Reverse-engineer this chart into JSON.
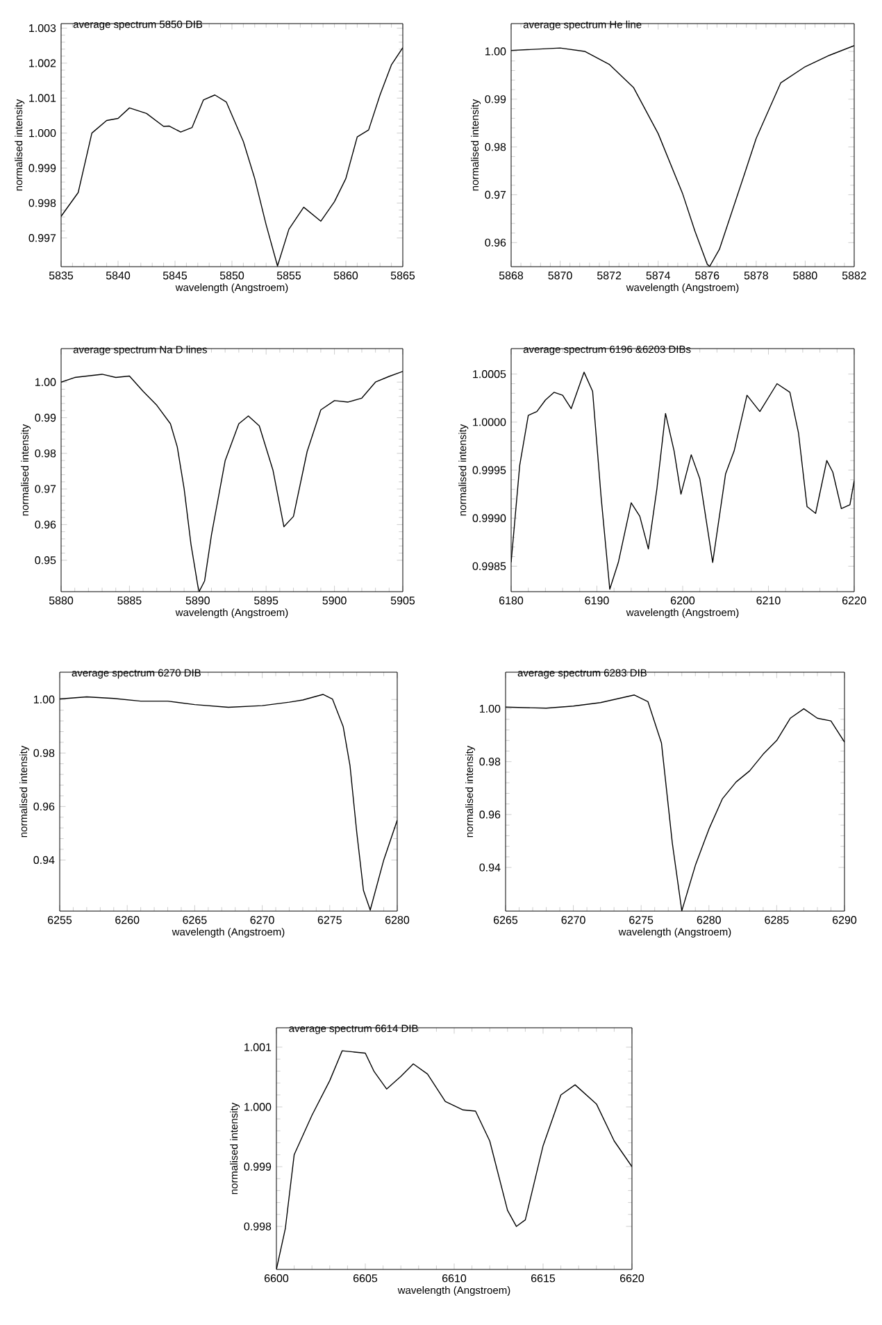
{
  "chart_data": [
    {
      "type": "line",
      "title": "average spectrum 5850 DIB",
      "xlabel": "wavelength (Angstroem)",
      "ylabel": "normalised intensity",
      "color": "#000000",
      "xlim": [
        5835,
        5865
      ],
      "ylim": [
        0.99618,
        1.00313
      ],
      "xticks": [
        5835,
        5840,
        5845,
        5850,
        5855,
        5860,
        5865
      ],
      "yticks": [
        {
          "value": 0.997,
          "label": "0.997"
        },
        {
          "value": 0.998,
          "label": "0.998"
        },
        {
          "value": 0.999,
          "label": "0.999"
        },
        {
          "value": 1.0,
          "label": "1.000"
        },
        {
          "value": 1.001,
          "label": "1.001"
        },
        {
          "value": 1.002,
          "label": "1.002"
        },
        {
          "value": 1.003,
          "label": "1.003"
        }
      ],
      "x": [
        5835,
        5836.5,
        5837.7,
        5839,
        5840,
        5841,
        5842.5,
        5844,
        5844.5,
        5845.5,
        5846.5,
        5847.5,
        5848.5,
        5849.5,
        5851,
        5852,
        5853,
        5854,
        5855,
        5856.3,
        5857.8,
        5859,
        5860,
        5861,
        5862,
        5863,
        5864,
        5865
      ],
      "values": [
        0.99762,
        0.9983,
        1.0,
        1.00036,
        1.00042,
        1.00072,
        1.00056,
        1.00019,
        1.0002,
        1.00003,
        1.00016,
        1.00095,
        1.00109,
        1.00089,
        0.99976,
        0.9987,
        0.99738,
        0.9962,
        0.99725,
        0.99788,
        0.99748,
        0.99804,
        0.9987,
        0.99989,
        1.00009,
        1.00109,
        1.00195,
        1.00244
      ]
    },
    {
      "type": "line",
      "title": "average spectrum He line",
      "xlabel": "wavelength (Angstroem)",
      "ylabel": "normalised intensity",
      "color": "#000000",
      "xlim": [
        5868,
        5882
      ],
      "ylim": [
        0.95496,
        1.00581
      ],
      "xticks": [
        5868,
        5870,
        5872,
        5874,
        5876,
        5878,
        5880,
        5882
      ],
      "yticks": [
        {
          "value": 0.96,
          "label": "0.96"
        },
        {
          "value": 0.97,
          "label": "0.97"
        },
        {
          "value": 0.98,
          "label": "0.98"
        },
        {
          "value": 0.99,
          "label": "0.99"
        },
        {
          "value": 1.0,
          "label": "1.00"
        }
      ],
      "x": [
        5868,
        5870,
        5871,
        5872,
        5873,
        5874,
        5875,
        5875.5,
        5876,
        5876.1,
        5876.5,
        5877,
        5877.5,
        5878,
        5879,
        5880,
        5881,
        5882
      ],
      "values": [
        1.0002,
        1.0007,
        1.0,
        0.9973,
        0.9924,
        0.9828,
        0.9702,
        0.9624,
        0.9555,
        0.955,
        0.9586,
        0.9663,
        0.974,
        0.9818,
        0.9934,
        0.9968,
        0.9992,
        1.0012
      ]
    },
    {
      "type": "line",
      "title": "average spectrum Na D lines",
      "xlabel": "wavelength (Angstroem)",
      "ylabel": "normalised intensity",
      "color": "#000000",
      "xlim": [
        5880,
        5905
      ],
      "ylim": [
        0.94117,
        1.0094
      ],
      "xticks": [
        5880,
        5885,
        5890,
        5895,
        5900,
        5905
      ],
      "yticks": [
        {
          "value": 0.95,
          "label": "0.95"
        },
        {
          "value": 0.96,
          "label": "0.96"
        },
        {
          "value": 0.97,
          "label": "0.97"
        },
        {
          "value": 0.98,
          "label": "0.98"
        },
        {
          "value": 0.99,
          "label": "0.99"
        },
        {
          "value": 1.0,
          "label": "1.00"
        }
      ],
      "x": [
        5880,
        5881,
        5883,
        5884,
        5885,
        5886,
        5887,
        5888,
        5888.5,
        5889,
        5889.5,
        5890,
        5890.1,
        5890.5,
        5891,
        5892,
        5893,
        5893.7,
        5894.5,
        5895.5,
        5896.3,
        5897,
        5898,
        5899,
        5900,
        5901,
        5902,
        5903,
        5904,
        5905
      ],
      "values": [
        1.0,
        1.0013,
        1.0022,
        1.0013,
        1.0017,
        0.9974,
        0.9935,
        0.9883,
        0.9818,
        0.9701,
        0.9545,
        0.9429,
        0.9412,
        0.9442,
        0.9571,
        0.9779,
        0.9883,
        0.9905,
        0.9877,
        0.9753,
        0.9594,
        0.9623,
        0.9805,
        0.9922,
        0.9948,
        0.9944,
        0.9955,
        1.0,
        1.0016,
        1.003
      ]
    },
    {
      "type": "line",
      "title": "average spectrum 6196 &6203 DIBs",
      "xlabel": "wavelength (Angstroem)",
      "ylabel": "normalised intensity",
      "color": "#000000",
      "xlim": [
        6180,
        6220
      ],
      "ylim": [
        0.998235,
        1.000765
      ],
      "xticks": [
        6180,
        6190,
        6200,
        6210,
        6220
      ],
      "yticks": [
        {
          "value": 0.9985,
          "label": "0.9985"
        },
        {
          "value": 0.999,
          "label": "0.9990"
        },
        {
          "value": 0.9995,
          "label": "0.9995"
        },
        {
          "value": 1.0,
          "label": "1.0000"
        },
        {
          "value": 1.0005,
          "label": "1.0005"
        }
      ],
      "x": [
        6180,
        6181,
        6182,
        6183,
        6184,
        6185,
        6186,
        6187,
        6188.5,
        6189.5,
        6190.5,
        6191.5,
        6192.5,
        6194,
        6195,
        6196,
        6197,
        6198,
        6199,
        6199.8,
        6201,
        6202,
        6203.5,
        6205,
        6206,
        6207.5,
        6209,
        6211,
        6212.5,
        6213.5,
        6214.5,
        6215.5,
        6216.8,
        6217.5,
        6218.5,
        6219.5,
        6220
      ],
      "values": [
        0.99854,
        0.99955,
        1.00007,
        1.00011,
        1.00023,
        1.00031,
        1.00028,
        1.00014,
        1.00052,
        1.00032,
        0.99921,
        0.99826,
        0.99854,
        0.99916,
        0.99902,
        0.99868,
        0.99931,
        1.00009,
        0.9997,
        0.99925,
        0.99966,
        0.99941,
        0.99854,
        0.99946,
        0.9997,
        1.00028,
        1.00011,
        1.0004,
        1.00031,
        0.99989,
        0.99912,
        0.99905,
        0.9996,
        0.99948,
        0.9991,
        0.99914,
        0.99939
      ]
    },
    {
      "type": "line",
      "title": "average spectrum 6270 DIB",
      "xlabel": "wavelength (Angstroem)",
      "ylabel": "normalised intensity",
      "color": "#000000",
      "xlim": [
        6255,
        6280
      ],
      "ylim": [
        0.9209,
        1.0102
      ],
      "xticks": [
        6255,
        6260,
        6265,
        6270,
        6275,
        6280
      ],
      "yticks": [
        {
          "value": 0.94,
          "label": "0.94"
        },
        {
          "value": 0.96,
          "label": "0.96"
        },
        {
          "value": 0.98,
          "label": "0.98"
        },
        {
          "value": 1.0,
          "label": "1.00"
        }
      ],
      "x": [
        6255,
        6257,
        6259,
        6261,
        6263,
        6265,
        6267.5,
        6270,
        6272,
        6273,
        6274.5,
        6275.2,
        6276,
        6276.5,
        6277,
        6277.5,
        6278,
        6279,
        6280
      ],
      "values": [
        1.0002,
        1.001,
        1.0004,
        0.9994,
        0.9994,
        0.9981,
        0.9971,
        0.9977,
        0.999,
        0.9998,
        1.0019,
        1.0002,
        0.9898,
        0.9753,
        0.9504,
        0.9286,
        0.9213,
        0.94,
        0.9549
      ]
    },
    {
      "type": "line",
      "title": "average spectrum 6283 DIB",
      "xlabel": "wavelength (Angstroem)",
      "ylabel": "normalised intensity",
      "color": "#000000",
      "xlim": [
        6265,
        6290
      ],
      "ylim": [
        0.9235,
        1.0138
      ],
      "xticks": [
        6265,
        6270,
        6275,
        6280,
        6285,
        6290
      ],
      "yticks": [
        {
          "value": 0.94,
          "label": "0.94"
        },
        {
          "value": 0.96,
          "label": "0.96"
        },
        {
          "value": 0.98,
          "label": "0.98"
        },
        {
          "value": 1.0,
          "label": "1.00"
        }
      ],
      "x": [
        6265,
        6268,
        6270,
        6272,
        6274.5,
        6275.5,
        6276.5,
        6277.3,
        6278,
        6279,
        6280,
        6281,
        6282,
        6283,
        6284,
        6285,
        6286,
        6287,
        6288,
        6289,
        6290
      ],
      "values": [
        1.0006,
        1.0002,
        1.001,
        1.0023,
        1.0052,
        1.0027,
        0.987,
        0.9492,
        0.9236,
        0.9408,
        0.9545,
        0.966,
        0.9723,
        0.9765,
        0.9828,
        0.988,
        0.9964,
        1.0,
        0.9964,
        0.9954,
        0.9874
      ]
    },
    {
      "type": "line",
      "title": "average spectrum 6614 DIB",
      "xlabel": "wavelength (Angstroem)",
      "ylabel": "normalised intensity",
      "color": "#000000",
      "xlim": [
        6600,
        6620
      ],
      "ylim": [
        0.99728,
        1.001325
      ],
      "xticks": [
        6600,
        6605,
        6610,
        6615,
        6620
      ],
      "yticks": [
        {
          "value": 0.998,
          "label": "0.998"
        },
        {
          "value": 0.999,
          "label": "0.999"
        },
        {
          "value": 1.0,
          "label": "1.000"
        },
        {
          "value": 1.001,
          "label": "1.001"
        }
      ],
      "x": [
        6600,
        6600.5,
        6601,
        6602,
        6603,
        6603.7,
        6605,
        6605.5,
        6606.2,
        6607,
        6607.7,
        6608.5,
        6609.5,
        6610.5,
        6611.2,
        6612,
        6613,
        6613.5,
        6614,
        6615,
        6616,
        6616.8,
        6618,
        6619,
        6620
      ],
      "values": [
        0.99728,
        0.99796,
        0.9992,
        0.99986,
        1.00044,
        1.00094,
        1.0009,
        1.00059,
        1.0003,
        1.00051,
        1.00072,
        1.00055,
        1.00009,
        0.99995,
        0.99993,
        0.99943,
        0.99827,
        0.998,
        0.99811,
        0.99935,
        1.0002,
        1.00037,
        1.00005,
        0.99943,
        0.999
      ]
    }
  ]
}
